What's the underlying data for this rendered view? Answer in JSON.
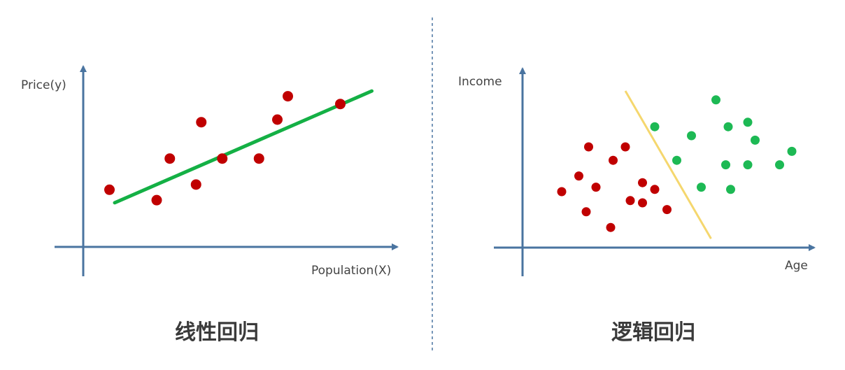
{
  "linear": {
    "title": "线性回归",
    "y_label": "Price(y)",
    "x_label": "Population(X)"
  },
  "logistic": {
    "title": "逻辑回归",
    "y_label": "Income",
    "x_label": "Age"
  },
  "colors": {
    "axis": "#4a74a0",
    "red_point": "#c00000",
    "green_point": "#1db954",
    "regression_line": "#14b045",
    "boundary_line": "#f5d76e",
    "divider": "#4a74a0"
  },
  "chart_data": [
    {
      "type": "scatter",
      "series": [
        {
          "values": [
            [
              1,
              2.2
            ],
            [
              2.8,
              1.8
            ],
            [
              3.3,
              3.4
            ],
            [
              4.3,
              2.4
            ],
            [
              4.5,
              4.8
            ],
            [
              5.3,
              3.4
            ],
            [
              6.7,
              3.4
            ],
            [
              7.4,
              4.9
            ],
            [
              7.8,
              5.8
            ],
            [
              9.8,
              5.5
            ]
          ]
        }
      ],
      "fit_line": [
        [
          1.2,
          1.7
        ],
        [
          11,
          6
        ]
      ]
    },
    {
      "type": "scatter",
      "series": [
        {
          "values": [
            [
              1.6,
              2.5
            ],
            [
              2.3,
              3.2
            ],
            [
              2.6,
              1.6
            ],
            [
              2.7,
              4.5
            ],
            [
              3,
              2.7
            ],
            [
              3.7,
              3.9
            ],
            [
              3.6,
              0.9
            ],
            [
              4.2,
              4.5
            ],
            [
              4.4,
              2.1
            ],
            [
              4.9,
              2.9
            ],
            [
              4.9,
              2.0
            ],
            [
              5.4,
              2.6
            ],
            [
              5.9,
              1.7
            ]
          ]
        },
        {
          "values": [
            [
              5.4,
              5.4
            ],
            [
              6.3,
              3.9
            ],
            [
              6.9,
              5.0
            ],
            [
              7.3,
              2.7
            ],
            [
              7.9,
              6.6
            ],
            [
              8.3,
              3.7
            ],
            [
              8.4,
              5.4
            ],
            [
              8.5,
              2.6
            ],
            [
              9.2,
              5.6
            ],
            [
              9.2,
              3.7
            ],
            [
              9.5,
              4.8
            ],
            [
              10.5,
              3.7
            ],
            [
              11,
              4.3
            ]
          ]
        }
      ],
      "boundary_line": [
        [
          4.2,
          7
        ],
        [
          7.7,
          0.4
        ]
      ]
    }
  ]
}
